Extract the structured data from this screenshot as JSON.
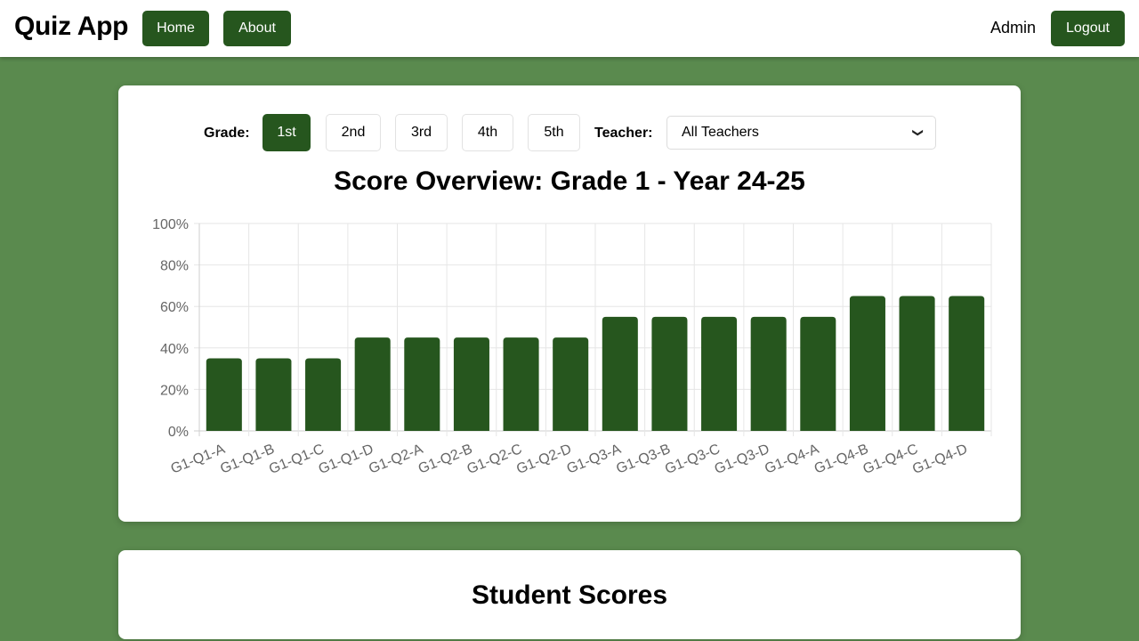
{
  "navbar": {
    "brand": "Quiz App",
    "home_label": "Home",
    "about_label": "About",
    "user_label": "Admin",
    "logout_label": "Logout"
  },
  "filters": {
    "grade_label": "Grade:",
    "grades": [
      "1st",
      "2nd",
      "3rd",
      "4th",
      "5th"
    ],
    "active_grade": "1st",
    "teacher_label": "Teacher:",
    "teacher_selected": "All Teachers"
  },
  "colors": {
    "accent": "#26561e",
    "page_bg": "#5a8a4e"
  },
  "chart_data": {
    "type": "bar",
    "title": "Score Overview: Grade 1 - Year 24-25",
    "xlabel": "",
    "ylabel": "",
    "ylim": [
      0,
      100
    ],
    "y_ticks": [
      "0%",
      "20%",
      "40%",
      "60%",
      "80%",
      "100%"
    ],
    "grid": true,
    "categories": [
      "G1-Q1-A",
      "G1-Q1-B",
      "G1-Q1-C",
      "G1-Q1-D",
      "G1-Q2-A",
      "G1-Q2-B",
      "G1-Q2-C",
      "G1-Q2-D",
      "G1-Q3-A",
      "G1-Q3-B",
      "G1-Q3-C",
      "G1-Q3-D",
      "G1-Q4-A",
      "G1-Q4-B",
      "G1-Q4-C",
      "G1-Q4-D"
    ],
    "values": [
      35,
      35,
      35,
      45,
      45,
      45,
      45,
      45,
      55,
      55,
      55,
      55,
      55,
      65,
      65,
      65
    ],
    "color": "#26561e"
  },
  "student_scores": {
    "title": "Student Scores"
  }
}
